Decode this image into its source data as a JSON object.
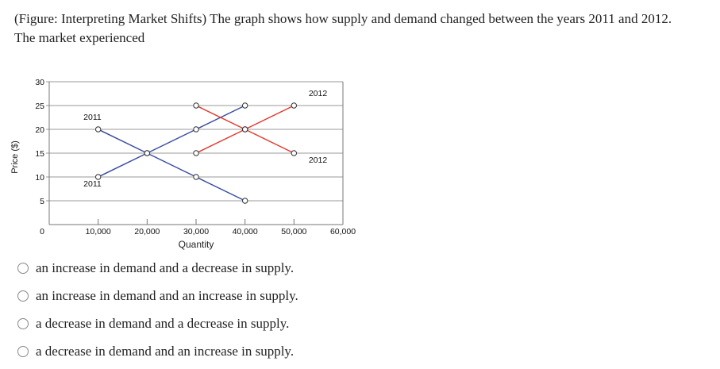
{
  "question": {
    "line1": "(Figure: Interpreting Market Shifts) The graph shows how supply and demand changed between the years 2011 and 2012.",
    "line2": "The market experienced"
  },
  "options": [
    "an increase in demand and a decrease in supply.",
    "an increase in demand and an increase in supply.",
    "a decrease in demand and a decrease in supply.",
    "a decrease in demand and an increase in supply."
  ],
  "chart_data": {
    "type": "line",
    "xlabel": "Quantity",
    "ylabel": "Price ($)",
    "xlim": [
      0,
      60000
    ],
    "ylim": [
      0,
      30
    ],
    "x_ticks": [
      10000,
      20000,
      30000,
      40000,
      50000,
      60000
    ],
    "x_tick_labels": [
      "10,000",
      "20,000",
      "30,000",
      "40,000",
      "50,000",
      "60,000"
    ],
    "y_ticks": [
      5,
      10,
      15,
      20,
      25,
      30
    ],
    "y_tick_labels": [
      "5",
      "10",
      "15",
      "20",
      "25",
      "30"
    ],
    "x_origin_label": "0",
    "grid": "horizontal",
    "series": [
      {
        "color": "#3b4ea0",
        "points": [
          [
            10000,
            10
          ],
          [
            20000,
            15
          ],
          [
            30000,
            20
          ],
          [
            40000,
            25
          ]
        ]
      },
      {
        "color": "#3b4ea0",
        "points": [
          [
            10000,
            20
          ],
          [
            20000,
            15
          ],
          [
            30000,
            10
          ],
          [
            40000,
            5
          ]
        ]
      },
      {
        "color": "#e23a2e",
        "points": [
          [
            30000,
            15
          ],
          [
            40000,
            20
          ],
          [
            50000,
            25
          ]
        ]
      },
      {
        "color": "#e23a2e",
        "points": [
          [
            30000,
            25
          ],
          [
            40000,
            20
          ],
          [
            50000,
            15
          ]
        ]
      }
    ],
    "annotations": [
      {
        "text": "2011",
        "x": 7000,
        "y": 22
      },
      {
        "text": "2011",
        "x": 7000,
        "y": 8
      },
      {
        "text": "2012",
        "x": 53000,
        "y": 27
      },
      {
        "text": "2012",
        "x": 53000,
        "y": 13
      }
    ]
  }
}
